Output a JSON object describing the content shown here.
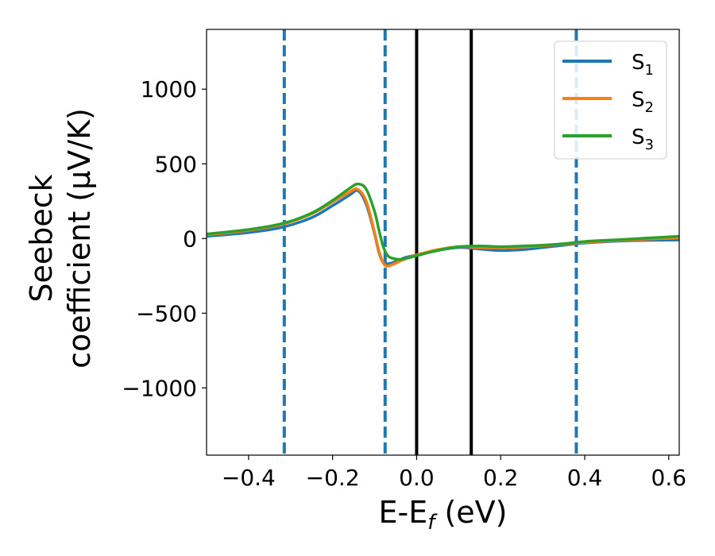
{
  "chart_data": {
    "type": "line",
    "xlabel_main": "E-E",
    "xlabel_sub": "f",
    "xlabel_tail": " (eV)",
    "ylabel_line1": "Seebeck",
    "ylabel_line2": "coefficient  (μV/K)",
    "xlim": [
      -0.5,
      0.625
    ],
    "ylim": [
      -1450,
      1400
    ],
    "xticks": [
      {
        "value": -0.4,
        "label": "−0.4"
      },
      {
        "value": -0.2,
        "label": "−0.2"
      },
      {
        "value": 0.0,
        "label": "0.0"
      },
      {
        "value": 0.2,
        "label": "0.2"
      },
      {
        "value": 0.4,
        "label": "0.4"
      },
      {
        "value": 0.6,
        "label": "0.6"
      }
    ],
    "yticks": [
      {
        "value": -1000,
        "label": "−1000"
      },
      {
        "value": -500,
        "label": "−500"
      },
      {
        "value": 0,
        "label": "0"
      },
      {
        "value": 500,
        "label": "500"
      },
      {
        "value": 1000,
        "label": "1000"
      }
    ],
    "grid": false,
    "legend_position": "top-right",
    "series": [
      {
        "name": "S",
        "name_sub": "1",
        "color": "#1f77b4",
        "x": [
          -0.5,
          -0.4,
          -0.32,
          -0.25,
          -0.2,
          -0.16,
          -0.14,
          -0.12,
          -0.1,
          -0.09,
          -0.08,
          -0.07,
          -0.05,
          -0.03,
          0.0,
          0.05,
          0.1,
          0.15,
          0.2,
          0.25,
          0.3,
          0.35,
          0.4,
          0.5,
          0.625
        ],
        "values": [
          15,
          40,
          75,
          140,
          220,
          290,
          320,
          230,
          30,
          -90,
          -160,
          -170,
          -155,
          -130,
          -110,
          -80,
          -60,
          -70,
          -80,
          -75,
          -60,
          -45,
          -30,
          -15,
          -10
        ]
      },
      {
        "name": "S",
        "name_sub": "2",
        "color": "#ff7f0e",
        "x": [
          -0.5,
          -0.4,
          -0.32,
          -0.25,
          -0.2,
          -0.16,
          -0.14,
          -0.12,
          -0.1,
          -0.09,
          -0.08,
          -0.07,
          -0.05,
          -0.03,
          0.0,
          0.05,
          0.1,
          0.15,
          0.2,
          0.25,
          0.3,
          0.35,
          0.4,
          0.5,
          0.625
        ],
        "values": [
          25,
          55,
          95,
          165,
          245,
          310,
          330,
          250,
          40,
          -80,
          -160,
          -185,
          -165,
          -140,
          -110,
          -75,
          -55,
          -60,
          -62,
          -58,
          -48,
          -38,
          -25,
          -10,
          5
        ]
      },
      {
        "name": "S",
        "name_sub": "3",
        "color": "#2ca02c",
        "x": [
          -0.5,
          -0.4,
          -0.32,
          -0.25,
          -0.2,
          -0.16,
          -0.14,
          -0.12,
          -0.1,
          -0.09,
          -0.08,
          -0.07,
          -0.06,
          -0.04,
          -0.02,
          0.0,
          0.05,
          0.1,
          0.15,
          0.2,
          0.25,
          0.3,
          0.35,
          0.4,
          0.5,
          0.625
        ],
        "values": [
          30,
          60,
          100,
          170,
          255,
          335,
          365,
          330,
          180,
          60,
          -50,
          -110,
          -130,
          -140,
          -130,
          -115,
          -80,
          -55,
          -50,
          -55,
          -50,
          -45,
          -35,
          -20,
          -5,
          15
        ]
      }
    ],
    "vertical_lines": [
      {
        "x": -0.315,
        "style": "dashed",
        "color": "#1f77b4"
      },
      {
        "x": -0.075,
        "style": "dashed",
        "color": "#1f77b4"
      },
      {
        "x": 0.0,
        "style": "solid",
        "color": "#000000"
      },
      {
        "x": 0.13,
        "style": "solid",
        "color": "#000000"
      },
      {
        "x": 0.38,
        "style": "dashed",
        "color": "#1f77b4"
      }
    ]
  }
}
